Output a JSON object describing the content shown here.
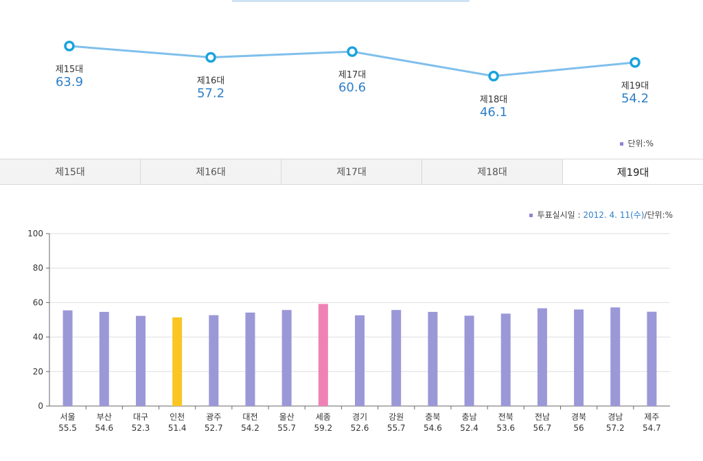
{
  "trend": {
    "unit_label": "단위:%",
    "line_color": "#7fbfec",
    "marker_color": "#1aa3dd",
    "value_color": "#2e7ec7",
    "points": [
      {
        "label": "제15대",
        "value": 63.9
      },
      {
        "label": "제16대",
        "value": 57.2
      },
      {
        "label": "제17대",
        "value": 60.6
      },
      {
        "label": "제18대",
        "value": 46.1
      },
      {
        "label": "제19대",
        "value": 54.2
      }
    ]
  },
  "tabs": [
    {
      "label": "제15대",
      "active": false
    },
    {
      "label": "제16대",
      "active": false
    },
    {
      "label": "제17대",
      "active": false
    },
    {
      "label": "제18대",
      "active": false
    },
    {
      "label": "제19대",
      "active": true
    }
  ],
  "bar_legend": {
    "prefix": "투표실시일 : ",
    "date": "2012. 4. 11(수)",
    "suffix": "/단위:%"
  },
  "chart_data": [
    {
      "type": "line",
      "categories": [
        "제15대",
        "제16대",
        "제17대",
        "제18대",
        "제19대"
      ],
      "values": [
        63.9,
        57.2,
        60.6,
        46.1,
        54.2
      ]
    },
    {
      "type": "bar",
      "categories": [
        "서울",
        "부산",
        "대구",
        "인천",
        "광주",
        "대전",
        "울산",
        "세종",
        "경기",
        "강원",
        "충북",
        "충남",
        "전북",
        "전남",
        "경북",
        "경남",
        "제주"
      ],
      "values": [
        55.5,
        54.6,
        52.3,
        51.4,
        52.7,
        54.2,
        55.7,
        59.2,
        52.6,
        55.7,
        54.6,
        52.4,
        53.6,
        56.7,
        56,
        57.2,
        54.7
      ],
      "value_labels": [
        "55.5",
        "54.6",
        "52.3",
        "51.4",
        "52.7",
        "54.2",
        "55.7",
        "59.2",
        "52.6",
        "55.7",
        "54.6",
        "52.4",
        "53.6",
        "56.7",
        "56",
        "57.2",
        "54.7"
      ],
      "ylim": [
        0,
        100
      ],
      "yticks": [
        0,
        20,
        40,
        60,
        80,
        100
      ],
      "grid": true,
      "bar_color": "#9b98d8",
      "highlights": {
        "인천": "#f9c623",
        "세종": "#ef82b5"
      }
    }
  ]
}
